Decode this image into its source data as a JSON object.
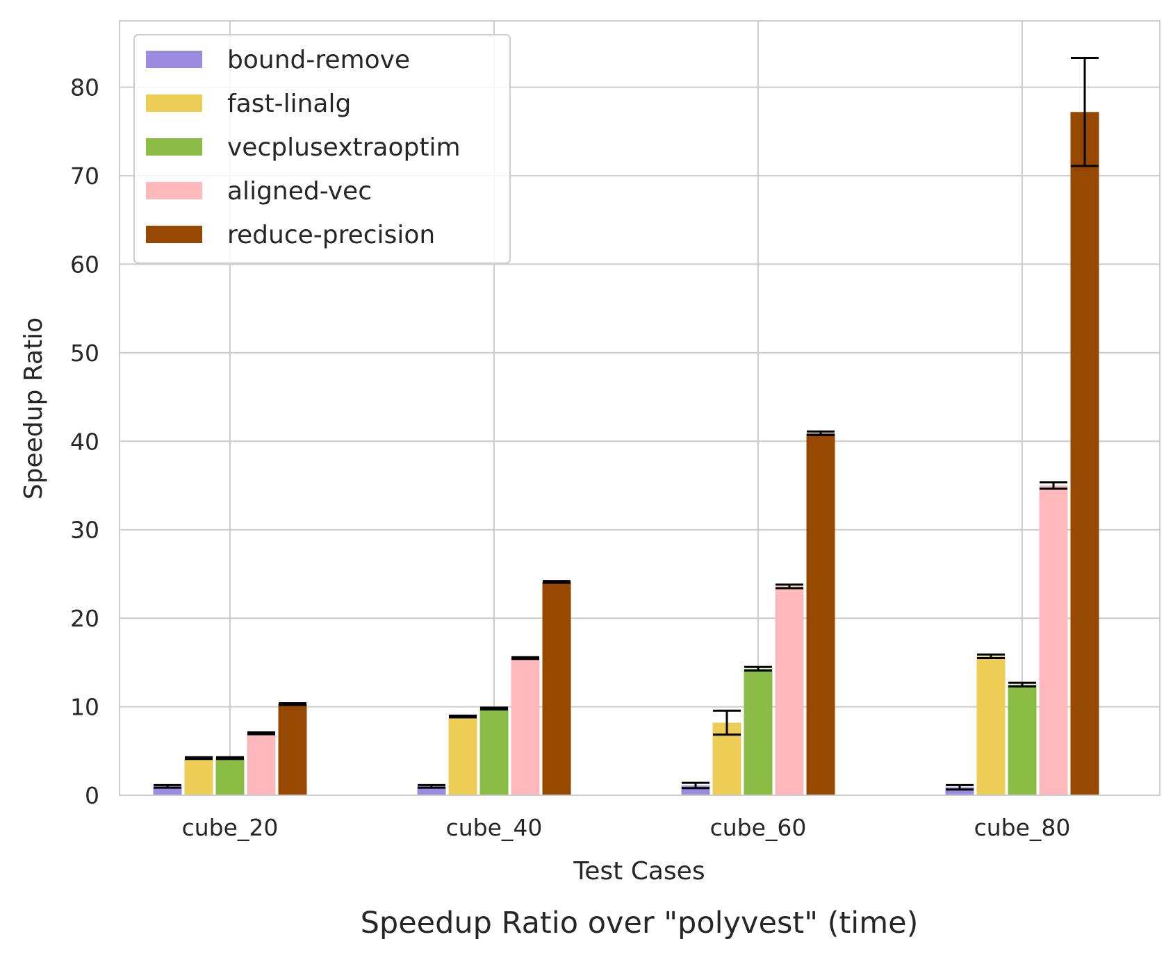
{
  "chart_data": {
    "type": "bar",
    "title": "",
    "caption": "Speedup Ratio over \"polyvest\" (time)",
    "xlabel": "Test Cases",
    "ylabel": "Speedup Ratio",
    "categories": [
      "cube_20",
      "cube_40",
      "cube_60",
      "cube_80"
    ],
    "ylim": [
      0,
      87.5
    ],
    "yticks": [
      0,
      10,
      20,
      30,
      40,
      50,
      60,
      70,
      80
    ],
    "grid": true,
    "legend_position": "top-left",
    "series": [
      {
        "name": "bound-remove",
        "color": "#9b8ce0",
        "values": [
          1.0,
          1.0,
          1.1,
          0.9
        ],
        "errors": [
          0.15,
          0.15,
          0.3,
          0.25
        ]
      },
      {
        "name": "fast-linalg",
        "color": "#eecd57",
        "values": [
          4.2,
          8.9,
          8.2,
          15.7
        ],
        "errors": [
          0.1,
          0.1,
          1.35,
          0.2
        ]
      },
      {
        "name": "vecplusextraoptim",
        "color": "#8bbc45",
        "values": [
          4.2,
          9.8,
          14.3,
          12.5
        ],
        "errors": [
          0.1,
          0.1,
          0.2,
          0.2
        ]
      },
      {
        "name": "aligned-vec",
        "color": "#ffb8bb",
        "values": [
          7.0,
          15.5,
          23.6,
          35.0
        ],
        "errors": [
          0.1,
          0.1,
          0.2,
          0.35
        ]
      },
      {
        "name": "reduce-precision",
        "color": "#964800",
        "values": [
          10.3,
          24.1,
          40.9,
          77.2
        ],
        "errors": [
          0.1,
          0.1,
          0.2,
          6.1
        ]
      }
    ]
  }
}
